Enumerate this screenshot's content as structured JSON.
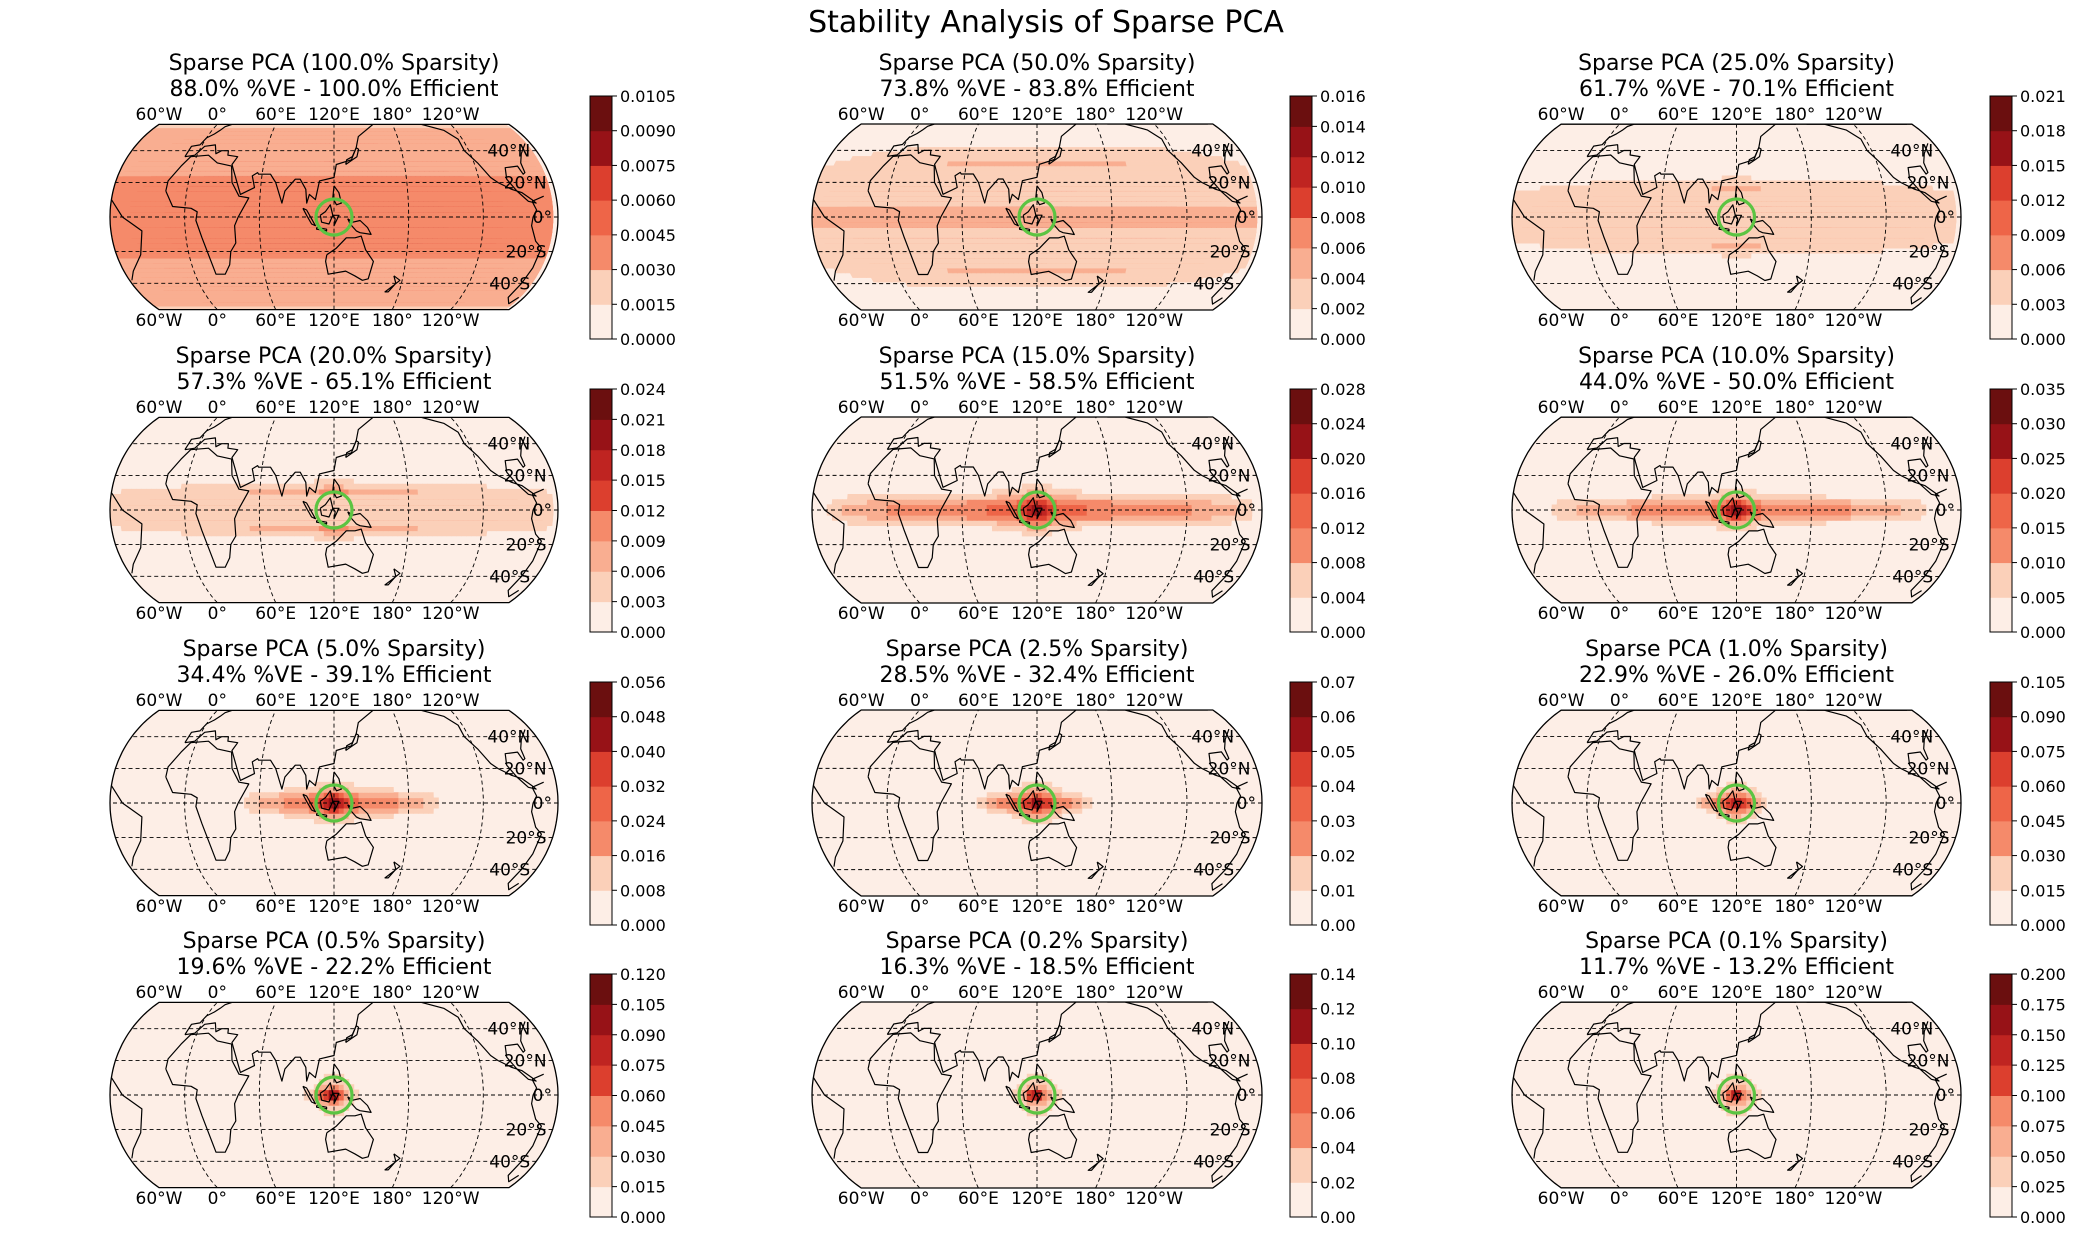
{
  "figure_title": "Stability Analysis of Sparse PCA",
  "colors": {
    "ramp": [
      "#fdeee6",
      "#fbd0b9",
      "#f9ae91",
      "#f58a6a",
      "#ee6548",
      "#dc3f2e",
      "#bf2421",
      "#971217",
      "#6b0f0f"
    ],
    "coastline": "#000000",
    "gridline": "#000000",
    "marker_circle": "#5cc442"
  },
  "map_axes": {
    "top_lon_labels": [
      "60°W",
      "0°",
      "60°E",
      "120°E",
      "180°",
      "120°W"
    ],
    "bottom_lon_labels": [
      "60°W",
      "0°",
      "60°E",
      "120°E",
      "180°",
      "120°W"
    ],
    "lat_labels": [
      "40°N",
      "20°N",
      "0°",
      "20°S",
      "40°S"
    ],
    "projection": "Eckert IV (central longitude 120°E)",
    "highlight": "circle near 120°E, 0°"
  },
  "chart_data": [
    {
      "type": "heatmap",
      "title_line1": "Sparse PCA (100.0% Sparsity)",
      "title_line2": "88.0% %VE - 100.0% Efficient",
      "sparsity_pct": 100.0,
      "variance_explained_pct": 88.0,
      "efficiency_pct": 100.0,
      "colorbar_ticks": [
        "0.0000",
        "0.0015",
        "0.0030",
        "0.0045",
        "0.0060",
        "0.0075",
        "0.0090",
        "0.0105"
      ],
      "colorbar_range": [
        0,
        0.0105
      ],
      "field_extent": {
        "lat_halfwidth_deg": 70,
        "lon_range_deg": [
          -180,
          180
        ],
        "intensity": 0.6
      }
    },
    {
      "type": "heatmap",
      "title_line1": "Sparse PCA (50.0% Sparsity)",
      "title_line2": "73.8% %VE - 83.8% Efficient",
      "sparsity_pct": 50.0,
      "variance_explained_pct": 73.8,
      "efficiency_pct": 83.8,
      "colorbar_ticks": [
        "0.000",
        "0.002",
        "0.004",
        "0.006",
        "0.008",
        "0.010",
        "0.012",
        "0.014",
        "0.016"
      ],
      "colorbar_range": [
        0,
        0.016
      ],
      "field_extent": {
        "lat_halfwidth_deg": 40,
        "lon_range_deg": [
          -180,
          180
        ],
        "intensity": 0.55
      }
    },
    {
      "type": "heatmap",
      "title_line1": "Sparse PCA (25.0% Sparsity)",
      "title_line2": "61.7% %VE - 70.1% Efficient",
      "sparsity_pct": 25.0,
      "variance_explained_pct": 61.7,
      "efficiency_pct": 70.1,
      "colorbar_ticks": [
        "0.000",
        "0.003",
        "0.006",
        "0.009",
        "0.012",
        "0.015",
        "0.018",
        "0.021"
      ],
      "colorbar_range": [
        0,
        0.021
      ],
      "field_extent": {
        "lat_halfwidth_deg": 20,
        "lon_range_deg": [
          -180,
          180
        ],
        "intensity": 0.5
      }
    },
    {
      "type": "heatmap",
      "title_line1": "Sparse PCA (20.0% Sparsity)",
      "title_line2": "57.3% %VE - 65.1% Efficient",
      "sparsity_pct": 20.0,
      "variance_explained_pct": 57.3,
      "efficiency_pct": 65.1,
      "colorbar_ticks": [
        "0.000",
        "0.003",
        "0.006",
        "0.009",
        "0.012",
        "0.015",
        "0.018",
        "0.021",
        "0.024"
      ],
      "colorbar_range": [
        0,
        0.024
      ],
      "field_extent": {
        "lat_halfwidth_deg": 14,
        "lon_range_deg": [
          -180,
          180
        ],
        "intensity": 0.5
      }
    },
    {
      "type": "heatmap",
      "title_line1": "Sparse PCA (15.0% Sparsity)",
      "title_line2": "51.5% %VE - 58.5% Efficient",
      "sparsity_pct": 15.0,
      "variance_explained_pct": 51.5,
      "efficiency_pct": 58.5,
      "colorbar_ticks": [
        "0.000",
        "0.004",
        "0.008",
        "0.012",
        "0.016",
        "0.020",
        "0.024",
        "0.028"
      ],
      "colorbar_range": [
        0,
        0.028
      ],
      "field_extent": {
        "lat_halfwidth_deg": 10,
        "lon_range_deg": [
          -165,
          170
        ],
        "intensity": 0.45
      }
    },
    {
      "type": "heatmap",
      "title_line1": "Sparse PCA (10.0% Sparsity)",
      "title_line2": "44.0% %VE - 50.0% Efficient",
      "sparsity_pct": 10.0,
      "variance_explained_pct": 44.0,
      "efficiency_pct": 50.0,
      "colorbar_ticks": [
        "0.000",
        "0.005",
        "0.010",
        "0.015",
        "0.020",
        "0.025",
        "0.030",
        "0.035"
      ],
      "colorbar_range": [
        0,
        0.035
      ],
      "field_extent": {
        "lat_halfwidth_deg": 8,
        "lon_range_deg": [
          -145,
          150
        ],
        "intensity": 0.4
      }
    },
    {
      "type": "heatmap",
      "title_line1": "Sparse PCA (5.0% Sparsity)",
      "title_line2": "34.4% %VE - 39.1% Efficient",
      "sparsity_pct": 5.0,
      "variance_explained_pct": 34.4,
      "efficiency_pct": 39.1,
      "colorbar_ticks": [
        "0.000",
        "0.008",
        "0.016",
        "0.024",
        "0.032",
        "0.040",
        "0.048",
        "0.056"
      ],
      "colorbar_range": [
        0,
        0.056
      ],
      "field_extent": {
        "lat_halfwidth_deg": 8,
        "lon_range_deg": [
          -70,
          80
        ],
        "intensity": 0.4
      }
    },
    {
      "type": "heatmap",
      "title_line1": "Sparse PCA (2.5% Sparsity)",
      "title_line2": "28.5% %VE - 32.4% Efficient",
      "sparsity_pct": 2.5,
      "variance_explained_pct": 28.5,
      "efficiency_pct": 32.4,
      "colorbar_ticks": [
        "0.00",
        "0.01",
        "0.02",
        "0.03",
        "0.04",
        "0.05",
        "0.06",
        "0.07"
      ],
      "colorbar_range": [
        0,
        0.07
      ],
      "field_extent": {
        "lat_halfwidth_deg": 6,
        "lon_range_deg": [
          -45,
          40
        ],
        "intensity": 0.4
      }
    },
    {
      "type": "heatmap",
      "title_line1": "Sparse PCA (1.0% Sparsity)",
      "title_line2": "22.9% %VE - 26.0% Efficient",
      "sparsity_pct": 1.0,
      "variance_explained_pct": 22.9,
      "efficiency_pct": 26.0,
      "colorbar_ticks": [
        "0.000",
        "0.015",
        "0.030",
        "0.045",
        "0.060",
        "0.075",
        "0.090",
        "0.105"
      ],
      "colorbar_range": [
        0,
        0.105
      ],
      "field_extent": {
        "lat_halfwidth_deg": 5,
        "lon_range_deg": [
          -28,
          18
        ],
        "intensity": 0.4
      }
    },
    {
      "type": "heatmap",
      "title_line1": "Sparse PCA (0.5% Sparsity)",
      "title_line2": "19.6% %VE - 22.2% Efficient",
      "sparsity_pct": 0.5,
      "variance_explained_pct": 19.6,
      "efficiency_pct": 22.2,
      "colorbar_ticks": [
        "0.000",
        "0.015",
        "0.030",
        "0.045",
        "0.060",
        "0.075",
        "0.090",
        "0.105",
        "0.120"
      ],
      "colorbar_range": [
        0,
        0.12
      ],
      "field_extent": {
        "lat_halfwidth_deg": 4,
        "lon_range_deg": [
          -16,
          8
        ],
        "intensity": 0.45
      }
    },
    {
      "type": "heatmap",
      "title_line1": "Sparse PCA (0.2% Sparsity)",
      "title_line2": "16.3% %VE - 18.5% Efficient",
      "sparsity_pct": 0.2,
      "variance_explained_pct": 16.3,
      "efficiency_pct": 18.5,
      "colorbar_ticks": [
        "0.00",
        "0.02",
        "0.04",
        "0.06",
        "0.08",
        "0.10",
        "0.12",
        "0.14"
      ],
      "colorbar_range": [
        0,
        0.14
      ],
      "field_extent": {
        "lat_halfwidth_deg": 3,
        "lon_range_deg": [
          -10,
          6
        ],
        "intensity": 0.45
      }
    },
    {
      "type": "heatmap",
      "title_line1": "Sparse PCA (0.1% Sparsity)",
      "title_line2": "11.7% %VE - 13.2% Efficient",
      "sparsity_pct": 0.1,
      "variance_explained_pct": 11.7,
      "efficiency_pct": 13.2,
      "colorbar_ticks": [
        "0.000",
        "0.025",
        "0.050",
        "0.075",
        "0.100",
        "0.125",
        "0.150",
        "0.175",
        "0.200"
      ],
      "colorbar_range": [
        0,
        0.2
      ],
      "field_extent": {
        "lat_halfwidth_deg": 3,
        "lon_range_deg": [
          -8,
          4
        ],
        "intensity": 0.45
      }
    }
  ]
}
